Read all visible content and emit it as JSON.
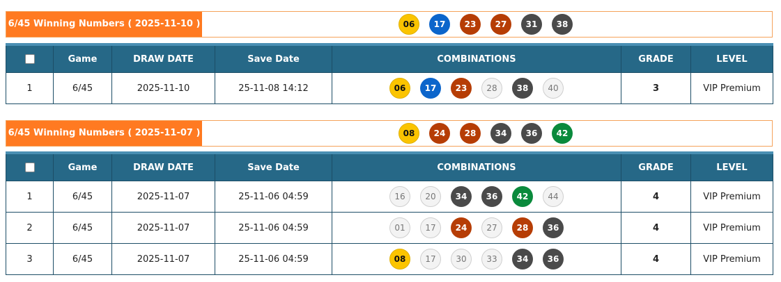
{
  "colors": {
    "accent": "#ff7a21",
    "header": "#266887",
    "yellow": "#fbc400",
    "blue": "#0c65cb",
    "red": "#b63d05",
    "dark": "#4a4a4a",
    "green": "#0a8a3c",
    "grey": "#f3f3f3"
  },
  "columns": {
    "game": "Game",
    "draw_date": "DRAW DATE",
    "save_date": "Save Date",
    "combinations": "COMBINATIONS",
    "grade": "GRADE",
    "level": "LEVEL"
  },
  "sections": [
    {
      "title": "6/45 Winning Numbers ( 2025-11-10 )",
      "winning": [
        [
          "06",
          "y"
        ],
        [
          "17",
          "b"
        ],
        [
          "23",
          "r"
        ],
        [
          "27",
          "r"
        ],
        [
          "31",
          "k"
        ],
        [
          "38",
          "k"
        ]
      ],
      "rows": [
        {
          "no": "1",
          "game": "6/45",
          "draw_date": "2025-11-10",
          "save_date": "25-11-08 14:12",
          "balls": [
            [
              "06",
              "y"
            ],
            [
              "17",
              "b"
            ],
            [
              "23",
              "r"
            ],
            [
              "28",
              "w"
            ],
            [
              "38",
              "k"
            ],
            [
              "40",
              "w"
            ]
          ],
          "grade": "3",
          "level": "VIP Premium"
        }
      ]
    },
    {
      "title": "6/45 Winning Numbers ( 2025-11-07 )",
      "winning": [
        [
          "08",
          "y"
        ],
        [
          "24",
          "r"
        ],
        [
          "28",
          "r"
        ],
        [
          "34",
          "k"
        ],
        [
          "36",
          "k"
        ],
        [
          "42",
          "g"
        ]
      ],
      "rows": [
        {
          "no": "1",
          "game": "6/45",
          "draw_date": "2025-11-07",
          "save_date": "25-11-06 04:59",
          "balls": [
            [
              "16",
              "w"
            ],
            [
              "20",
              "w"
            ],
            [
              "34",
              "k"
            ],
            [
              "36",
              "k"
            ],
            [
              "42",
              "g"
            ],
            [
              "44",
              "w"
            ]
          ],
          "grade": "4",
          "level": "VIP Premium"
        },
        {
          "no": "2",
          "game": "6/45",
          "draw_date": "2025-11-07",
          "save_date": "25-11-06 04:59",
          "balls": [
            [
              "01",
              "w"
            ],
            [
              "17",
              "w"
            ],
            [
              "24",
              "r"
            ],
            [
              "27",
              "w"
            ],
            [
              "28",
              "r"
            ],
            [
              "36",
              "k"
            ]
          ],
          "grade": "4",
          "level": "VIP Premium"
        },
        {
          "no": "3",
          "game": "6/45",
          "draw_date": "2025-11-07",
          "save_date": "25-11-06 04:59",
          "balls": [
            [
              "08",
              "y"
            ],
            [
              "17",
              "w"
            ],
            [
              "30",
              "w"
            ],
            [
              "33",
              "w"
            ],
            [
              "34",
              "k"
            ],
            [
              "36",
              "k"
            ]
          ],
          "grade": "4",
          "level": "VIP Premium"
        }
      ]
    }
  ]
}
